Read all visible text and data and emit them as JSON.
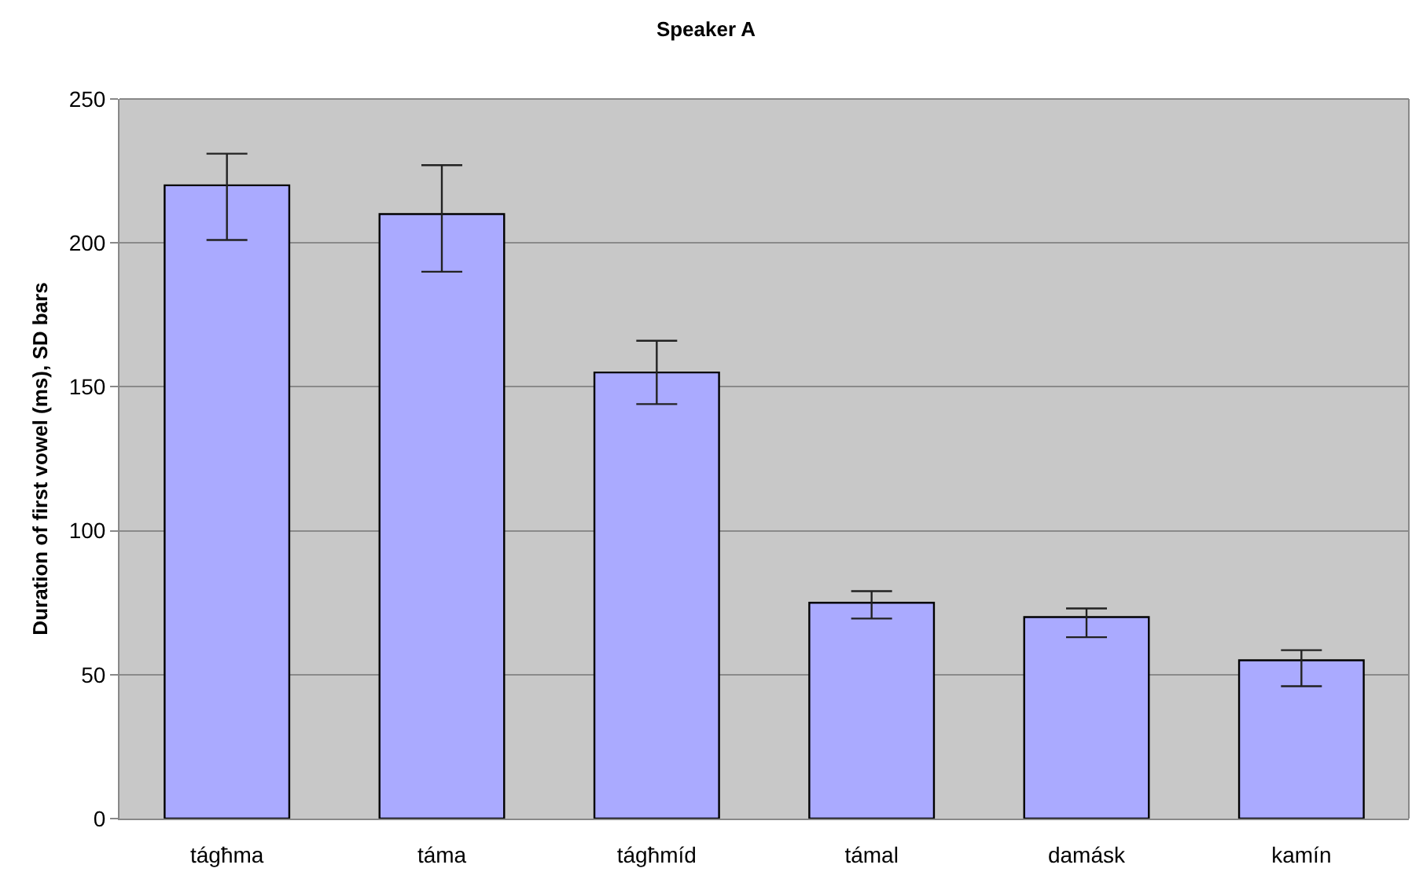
{
  "chart_data": {
    "type": "bar",
    "title": "Speaker A",
    "ylabel": "Duration of first vowel (ms), SD bars",
    "categories": [
      "tágħma",
      "táma",
      "tágħmíd",
      "támal",
      "damásk",
      "kamín"
    ],
    "values": [
      220,
      210,
      155,
      75,
      70,
      55
    ],
    "errors": [
      [
        201,
        231
      ],
      [
        190,
        227
      ],
      [
        144,
        166
      ],
      [
        69.5,
        79
      ],
      [
        63,
        73
      ],
      [
        46,
        58.5
      ]
    ],
    "color": "#aaaaff",
    "ylim": [
      0,
      250
    ],
    "yticks": [
      0,
      50,
      100,
      150,
      200,
      250
    ],
    "grid": "y"
  }
}
